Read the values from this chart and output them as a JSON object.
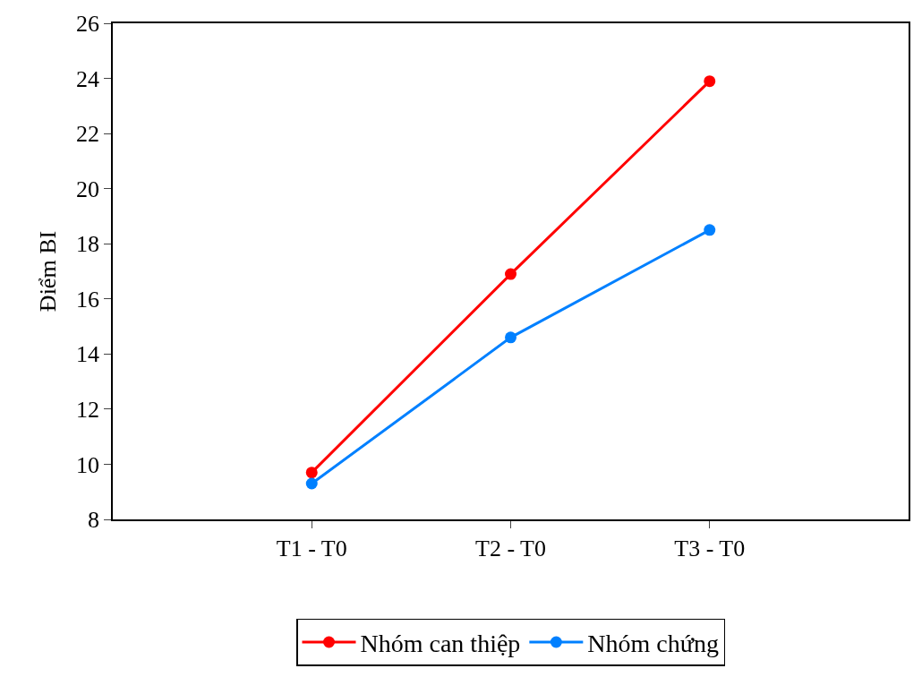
{
  "chart_data": {
    "type": "line",
    "ylabel": "Điểm BI",
    "categories": [
      "T1 - T0",
      "T2 - T0",
      "T3 - T0"
    ],
    "series": [
      {
        "name": "Nhóm can thiệp",
        "color": "#ff0000",
        "values": [
          9.7,
          16.9,
          23.9
        ]
      },
      {
        "name": "Nhóm chứng",
        "color": "#0080ff",
        "values": [
          9.3,
          14.6,
          18.5
        ]
      }
    ],
    "ylim": [
      8,
      26
    ],
    "yticks": [
      8,
      10,
      12,
      14,
      16,
      18,
      20,
      22,
      24,
      26
    ],
    "legend": "bottom",
    "marker": "circle",
    "line_style": "solid"
  }
}
